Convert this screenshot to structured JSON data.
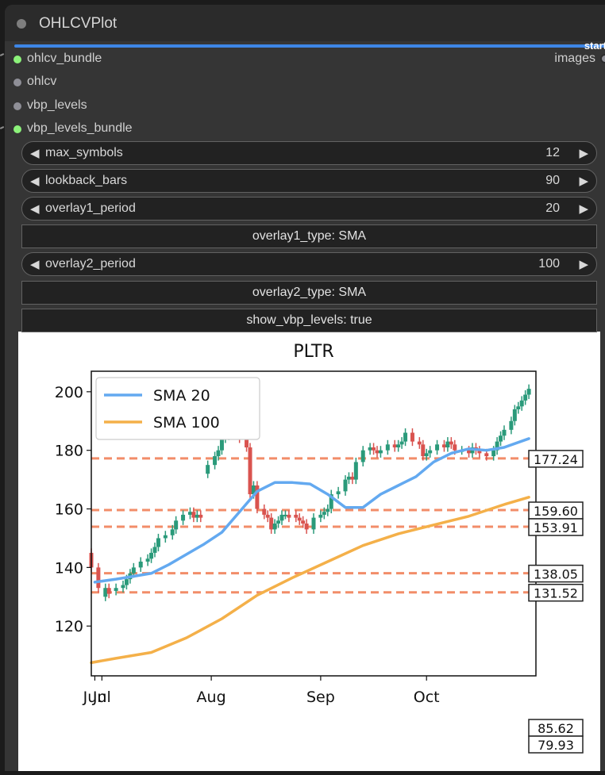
{
  "node": {
    "title": "OHLCVPlot",
    "start_label": "start",
    "inputs": [
      {
        "name": "ohlcv_bundle",
        "connected": true
      },
      {
        "name": "ohlcv",
        "connected": false
      },
      {
        "name": "vbp_levels",
        "connected": false
      },
      {
        "name": "vbp_levels_bundle",
        "connected": true
      }
    ],
    "output": {
      "name": "images"
    }
  },
  "widgets": {
    "max_symbols": {
      "label": "max_symbols",
      "value": "12"
    },
    "lookback_bars": {
      "label": "lookback_bars",
      "value": "90"
    },
    "overlay1_period": {
      "label": "overlay1_period",
      "value": "20"
    },
    "overlay1_type": "overlay1_type: SMA",
    "overlay2_period": {
      "label": "overlay2_period",
      "value": "100"
    },
    "overlay2_type": "overlay2_type: SMA",
    "show_vbp_levels": "show_vbp_levels: true"
  },
  "arrows": {
    "left": "◀",
    "right": "▶"
  },
  "colors": {
    "accent_progress": "#3e86e6",
    "slot_connected": "#8cf27a",
    "slot_idle": "#8f8f97",
    "sma20": "#63a9f0",
    "sma100": "#f4b049",
    "vbp_line": "#f07a4f",
    "candle_up": "#2a9a7a",
    "candle_down": "#d9534f"
  },
  "chart_data": {
    "type": "line",
    "title": "PLTR",
    "ylim": [
      103,
      207
    ],
    "y_ticks": [
      120,
      140,
      160,
      180,
      200
    ],
    "x_ticks": [
      "Jun",
      "Jul",
      "Aug",
      "Sep",
      "Oct"
    ],
    "x_tick_days": [
      -1,
      1,
      32,
      63,
      93
    ],
    "x_range_days": [
      -2,
      124
    ],
    "legend": {
      "position": "top-left",
      "entries": [
        "SMA 20",
        "SMA 100"
      ]
    },
    "grid": false,
    "vbp_levels": [
      177.24,
      159.6,
      153.91,
      138.05,
      131.52,
      85.62,
      79.93
    ],
    "series": [
      {
        "name": "SMA 20",
        "x": [
          -1,
          5,
          10,
          15,
          20,
          25,
          30,
          35,
          40,
          45,
          50,
          55,
          60,
          65,
          70,
          75,
          80,
          85,
          90,
          95,
          100,
          105,
          110,
          115,
          122
        ],
        "y": [
          135,
          136,
          137,
          138,
          141,
          144.5,
          148,
          152,
          159,
          166,
          169,
          169,
          168.5,
          165,
          160.5,
          160.5,
          165,
          168,
          171,
          176,
          179,
          180.5,
          180,
          181,
          184
        ]
      },
      {
        "name": "SMA 100",
        "x": [
          -2,
          5,
          15,
          25,
          35,
          45,
          55,
          65,
          75,
          85,
          95,
          105,
          115,
          122
        ],
        "y": [
          107.5,
          109,
          111,
          116,
          122.5,
          130.5,
          136.5,
          142,
          147.5,
          151.5,
          154.5,
          157.5,
          161.5,
          164
        ]
      }
    ],
    "candles": {
      "x": [
        -2,
        0,
        2,
        3,
        5,
        7,
        8,
        9,
        10,
        12,
        14,
        15,
        16,
        17,
        19,
        21,
        22,
        24,
        26,
        27,
        28,
        29,
        31,
        33,
        34,
        35,
        36,
        37,
        38,
        40,
        42,
        43,
        44,
        45,
        47,
        48,
        49,
        50,
        51,
        52,
        53,
        54,
        56,
        57,
        58,
        59,
        61,
        63,
        64,
        65,
        66,
        68,
        70,
        71,
        72,
        73,
        75,
        77,
        78,
        79,
        80,
        82,
        84,
        85,
        86,
        87,
        89,
        91,
        92,
        93,
        94,
        96,
        98,
        99,
        100,
        101,
        103,
        105,
        106,
        107,
        108,
        110,
        112,
        113,
        114,
        115,
        117,
        118,
        119,
        120,
        121,
        122
      ],
      "open": [
        145,
        140,
        130,
        133,
        132,
        133,
        134,
        136,
        138,
        140,
        142,
        143,
        145,
        147,
        150,
        151,
        153,
        156,
        158,
        159,
        157,
        158,
        172,
        175,
        178,
        180,
        184,
        185,
        186,
        186,
        184,
        181,
        165,
        168,
        160,
        158,
        157,
        153,
        155,
        156,
        158,
        158,
        158,
        157,
        156,
        155,
        153,
        157,
        158,
        159,
        160,
        165,
        166,
        170,
        171,
        170,
        176,
        180,
        181,
        180,
        179,
        180,
        182,
        181,
        182,
        183,
        186,
        183,
        182,
        178,
        179,
        180,
        182,
        181,
        183,
        182,
        180,
        180,
        179,
        181,
        180,
        179,
        178,
        180,
        183,
        185,
        187,
        190,
        194,
        195,
        197,
        199
      ],
      "close": [
        140,
        133,
        133,
        131,
        133,
        134,
        136,
        138,
        140,
        142,
        143,
        145,
        147,
        150,
        151,
        153,
        156,
        158,
        159,
        157,
        158,
        157,
        175,
        178,
        180,
        184,
        185,
        186,
        186,
        184,
        181,
        165,
        168,
        160,
        158,
        157,
        153,
        155,
        156,
        158,
        158,
        157,
        157,
        156,
        155,
        153,
        157,
        158,
        159,
        160,
        165,
        166,
        170,
        171,
        170,
        176,
        180,
        181,
        180,
        179,
        180,
        182,
        181,
        182,
        183,
        186,
        183,
        182,
        178,
        179,
        180,
        182,
        181,
        183,
        182,
        180,
        180,
        179,
        181,
        180,
        179,
        178,
        180,
        183,
        185,
        187,
        190,
        194,
        195,
        197,
        199,
        201
      ]
    }
  }
}
